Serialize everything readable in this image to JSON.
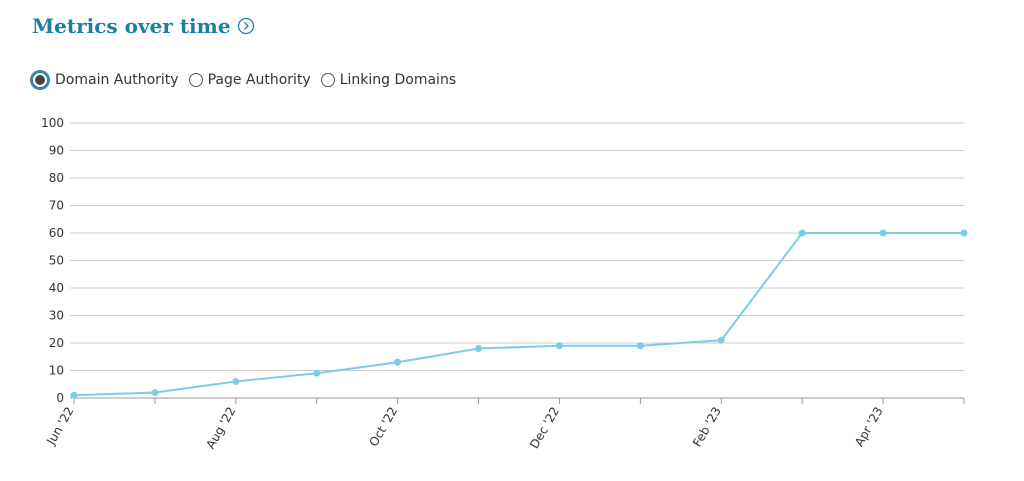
{
  "header": {
    "title": "Metrics over time"
  },
  "options": [
    {
      "label": "Domain Authority",
      "selected": true
    },
    {
      "label": "Page Authority",
      "selected": false
    },
    {
      "label": "Linking Domains",
      "selected": false
    }
  ],
  "chart_data": {
    "type": "line",
    "categories": [
      "Jun '22",
      null,
      "Aug '22",
      null,
      "Oct '22",
      null,
      "Dec '22",
      null,
      "Feb '23",
      null,
      "Apr '23",
      null
    ],
    "values": [
      1,
      2,
      6,
      9,
      13,
      18,
      19,
      19,
      21,
      60,
      60,
      60
    ],
    "color": "#7ecbe8",
    "ylim": [
      0,
      100
    ],
    "yticks": [
      0,
      10,
      20,
      30,
      40,
      50,
      60,
      70,
      80,
      90,
      100
    ],
    "grid": true
  }
}
